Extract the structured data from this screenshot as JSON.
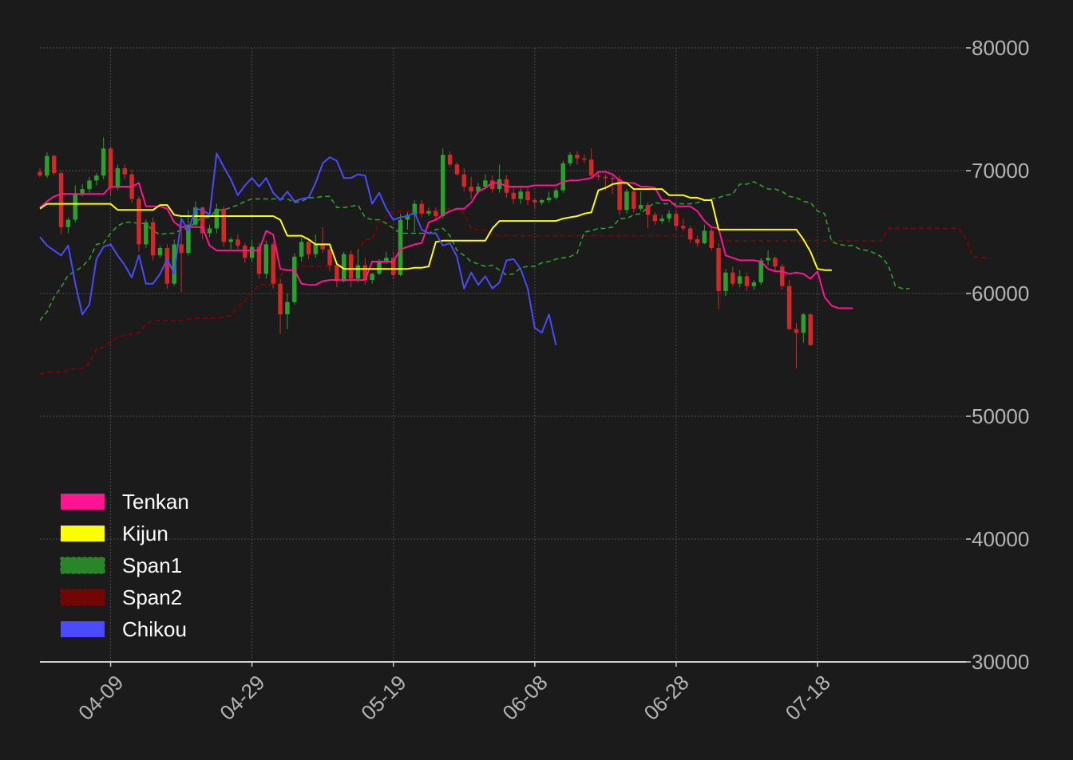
{
  "chart_data": {
    "type": "candlestick",
    "title": "",
    "xlabel": "",
    "ylabel": "",
    "ylim": [
      30000,
      80000
    ],
    "yticks": [
      30000,
      40000,
      50000,
      60000,
      70000,
      80000
    ],
    "ytick_labels": [
      "30000",
      "40000",
      "50000",
      "60000",
      "70000",
      "80000"
    ],
    "xrange": [
      "03-30",
      "08-08"
    ],
    "xticks": [
      "04-09",
      "04-29",
      "05-19",
      "06-08",
      "06-28",
      "07-18"
    ],
    "grid": true,
    "legend_position": "lower-left",
    "colors": {
      "background": "#1b1b1b",
      "up_candle": "#2ca02c",
      "down_candle": "#d62728",
      "axis": "#d0d0d0",
      "tick_text": "#b4b4b4",
      "grid": "#4a4a4a"
    },
    "candles_start": "03-30",
    "candles": [
      [
        69900,
        70200,
        69500,
        69600
      ],
      [
        69600,
        71500,
        69400,
        71200
      ],
      [
        71200,
        71300,
        69600,
        69800
      ],
      [
        69800,
        70000,
        64800,
        65400
      ],
      [
        65400,
        66200,
        64900,
        66000
      ],
      [
        66000,
        68800,
        65800,
        68100
      ],
      [
        68100,
        68900,
        67900,
        68500
      ],
      [
        68500,
        69500,
        68200,
        69200
      ],
      [
        69200,
        69800,
        68800,
        69600
      ],
      [
        69600,
        72700,
        69300,
        71800
      ],
      [
        71800,
        72000,
        68000,
        68600
      ],
      [
        68600,
        70500,
        68400,
        70200
      ],
      [
        70200,
        70500,
        69300,
        69700
      ],
      [
        69700,
        70100,
        67400,
        67700
      ],
      [
        67700,
        67900,
        63400,
        64000
      ],
      [
        64000,
        66000,
        63700,
        65800
      ],
      [
        65800,
        66200,
        62700,
        63100
      ],
      [
        63100,
        63900,
        62900,
        63700
      ],
      [
        63700,
        64000,
        60400,
        60800
      ],
      [
        60800,
        64400,
        60600,
        64000
      ],
      [
        64000,
        66000,
        60100,
        63300
      ],
      [
        63300,
        66800,
        63100,
        65600
      ],
      [
        65600,
        67500,
        65400,
        67000
      ],
      [
        67000,
        67100,
        64400,
        64900
      ],
      [
        64900,
        65600,
        64600,
        65300
      ],
      [
        65300,
        67300,
        64900,
        66900
      ],
      [
        66900,
        67100,
        63800,
        64200
      ],
      [
        64200,
        64600,
        63600,
        64400
      ],
      [
        64400,
        64800,
        63600,
        63900
      ],
      [
        63900,
        64100,
        62500,
        62900
      ],
      [
        62900,
        64300,
        62600,
        63800
      ],
      [
        63800,
        64100,
        61200,
        61600
      ],
      [
        61600,
        64300,
        61200,
        64000
      ],
      [
        64000,
        64200,
        60400,
        60800
      ],
      [
        60800,
        61200,
        56700,
        58300
      ],
      [
        58300,
        60000,
        57100,
        59300
      ],
      [
        59300,
        63300,
        59100,
        63000
      ],
      [
        63000,
        64500,
        62600,
        64200
      ],
      [
        64200,
        64500,
        62800,
        63200
      ],
      [
        63200,
        64800,
        62900,
        64000
      ],
      [
        64000,
        65400,
        63300,
        63600
      ],
      [
        63600,
        64000,
        61800,
        62300
      ],
      [
        62300,
        62600,
        60500,
        61000
      ],
      [
        61000,
        63400,
        60900,
        63200
      ],
      [
        63200,
        63500,
        60500,
        61200
      ],
      [
        61200,
        63600,
        60900,
        62300
      ],
      [
        62300,
        62900,
        60700,
        61100
      ],
      [
        61100,
        61700,
        60800,
        61600
      ],
      [
        61600,
        62800,
        61500,
        62600
      ],
      [
        62600,
        63400,
        62400,
        62900
      ],
      [
        62900,
        63400,
        61200,
        61500
      ],
      [
        61500,
        66500,
        61400,
        66000
      ],
      [
        66000,
        66600,
        65200,
        66400
      ],
      [
        66400,
        67600,
        65000,
        67300
      ],
      [
        67300,
        67600,
        66200,
        66500
      ],
      [
        66500,
        67000,
        66300,
        66700
      ],
      [
        66700,
        67000,
        65900,
        66300
      ],
      [
        66300,
        71800,
        66100,
        71300
      ],
      [
        71300,
        71600,
        70300,
        70500
      ],
      [
        70500,
        70700,
        69600,
        69700
      ],
      [
        69700,
        70200,
        68300,
        68700
      ],
      [
        68700,
        69500,
        67700,
        68300
      ],
      [
        68300,
        69000,
        68100,
        68700
      ],
      [
        68700,
        69700,
        68500,
        69200
      ],
      [
        69200,
        69600,
        68200,
        68500
      ],
      [
        68500,
        70500,
        68200,
        69300
      ],
      [
        69300,
        69600,
        67800,
        68200
      ],
      [
        68200,
        68600,
        67300,
        67700
      ],
      [
        67700,
        68600,
        67300,
        68300
      ],
      [
        68300,
        68600,
        67200,
        67600
      ],
      [
        67600,
        67800,
        66900,
        67400
      ],
      [
        67400,
        67700,
        67200,
        67600
      ],
      [
        67600,
        68300,
        67400,
        67800
      ],
      [
        67800,
        68600,
        67600,
        68400
      ],
      [
        68400,
        70800,
        68200,
        70600
      ],
      [
        70600,
        71500,
        70400,
        71300
      ],
      [
        71300,
        71600,
        70500,
        71000
      ],
      [
        71000,
        71300,
        70600,
        70900
      ],
      [
        70900,
        71800,
        69500,
        69600
      ],
      [
        69600,
        69900,
        69200,
        69500
      ],
      [
        69500,
        69700,
        68400,
        69400
      ],
      [
        69400,
        69700,
        68100,
        69300
      ],
      [
        69300,
        69600,
        66400,
        66800
      ],
      [
        66800,
        68500,
        66500,
        68300
      ],
      [
        68300,
        68600,
        66600,
        66900
      ],
      [
        66900,
        68300,
        66700,
        67200
      ],
      [
        67200,
        67400,
        65300,
        66400
      ],
      [
        66400,
        66600,
        65600,
        65900
      ],
      [
        65900,
        66400,
        65700,
        66100
      ],
      [
        66100,
        66800,
        65800,
        66500
      ],
      [
        66500,
        66800,
        65200,
        65500
      ],
      [
        65500,
        66100,
        65100,
        65300
      ],
      [
        65300,
        65500,
        64100,
        64400
      ],
      [
        64400,
        64700,
        63800,
        64100
      ],
      [
        64100,
        65600,
        64000,
        65100
      ],
      [
        65100,
        65400,
        63500,
        63700
      ],
      [
        63700,
        64100,
        58700,
        60200
      ],
      [
        60200,
        62000,
        59800,
        61700
      ],
      [
        61700,
        62200,
        60600,
        60800
      ],
      [
        60800,
        61900,
        60500,
        61400
      ],
      [
        61400,
        61700,
        60200,
        60600
      ],
      [
        60600,
        61100,
        60300,
        60900
      ],
      [
        60900,
        62900,
        60700,
        62700
      ],
      [
        62700,
        63500,
        62300,
        62900
      ],
      [
        62900,
        63000,
        61800,
        62200
      ],
      [
        62200,
        62400,
        60300,
        60600
      ],
      [
        60600,
        61100,
        57000,
        57100
      ],
      [
        57100,
        57600,
        53900,
        56800
      ],
      [
        56800,
        58400,
        56000,
        58300
      ],
      [
        58300,
        58400,
        55700,
        55800
      ]
    ],
    "series": [
      {
        "name": "Tenkan",
        "color": "#ff1493",
        "dash": "solid",
        "x_start": "03-30",
        "values": [
          67000,
          67500,
          67900,
          68100,
          68100,
          68100,
          68100,
          68100,
          68100,
          68100,
          68700,
          68700,
          68700,
          68700,
          69000,
          67100,
          67100,
          67100,
          66900,
          65800,
          65400,
          65400,
          65400,
          65400,
          63900,
          63500,
          63500,
          63500,
          63500,
          63500,
          63500,
          63500,
          65100,
          64800,
          62000,
          61900,
          61900,
          60800,
          60700,
          60700,
          61000,
          61100,
          61100,
          61100,
          61100,
          61100,
          61100,
          62600,
          62600,
          62600,
          62600,
          63600,
          63800,
          64000,
          64100,
          65800,
          66000,
          66400,
          66700,
          66900,
          66900,
          67400,
          68300,
          68600,
          69000,
          69000,
          68700,
          68700,
          68700,
          68700,
          68800,
          68800,
          68800,
          68800,
          69100,
          69200,
          69200,
          69300,
          69400,
          69900,
          69900,
          69700,
          69200,
          69000,
          69000,
          68700,
          68700,
          68600,
          67600,
          67600,
          67100,
          67100,
          67100,
          66700,
          65900,
          65400,
          65300,
          63100,
          62900,
          62700,
          62700,
          62700,
          62600,
          62000,
          61800,
          61800,
          61600,
          61700,
          61600,
          61200,
          61800,
          59700,
          59000,
          58800,
          58800,
          58800
        ]
      },
      {
        "name": "Kijun",
        "color": "#ffff00",
        "dash": "solid",
        "x_start": "03-30",
        "values": [
          66900,
          67300,
          67300,
          67300,
          67300,
          67300,
          67300,
          67300,
          67300,
          67300,
          67300,
          66800,
          66800,
          66800,
          66800,
          66800,
          66800,
          67200,
          67200,
          66400,
          66300,
          66300,
          66300,
          66300,
          66300,
          66300,
          66300,
          66300,
          66300,
          66300,
          66300,
          66300,
          66300,
          66300,
          66000,
          64700,
          64700,
          64700,
          64400,
          64000,
          64000,
          64000,
          62400,
          62000,
          62000,
          62000,
          62000,
          62000,
          62000,
          62000,
          62000,
          62000,
          62000,
          62100,
          62100,
          62200,
          64200,
          64300,
          64300,
          64300,
          64300,
          64300,
          64300,
          64300,
          65300,
          65900,
          65900,
          65900,
          65900,
          65900,
          65900,
          65900,
          65900,
          65900,
          66100,
          66200,
          66300,
          66500,
          66600,
          68400,
          68600,
          68900,
          69000,
          69000,
          68500,
          68500,
          68500,
          68500,
          68500,
          68000,
          68000,
          68000,
          67800,
          67800,
          67600,
          67600,
          65200,
          65200,
          65200,
          65200,
          65200,
          65200,
          65200,
          65200,
          65200,
          65200,
          65200,
          65200,
          64400,
          63400,
          62000,
          61900,
          61900
        ]
      },
      {
        "name": "Span1",
        "color": "#2ca02c",
        "dash": "dashed",
        "x_start": "03-30",
        "values": [
          57800,
          58500,
          59700,
          60500,
          61500,
          61800,
          62200,
          62800,
          64000,
          64100,
          64900,
          65500,
          65800,
          65800,
          65700,
          65700,
          65100,
          64800,
          64900,
          64900,
          65200,
          65300,
          65800,
          66200,
          66200,
          66800,
          66800,
          67000,
          67200,
          67500,
          67700,
          67700,
          67700,
          67700,
          67700,
          67700,
          67400,
          67500,
          67800,
          67800,
          67900,
          67900,
          67000,
          67000,
          67100,
          67200,
          66200,
          66000,
          66000,
          65700,
          65300,
          64900,
          64900,
          64900,
          64900,
          64900,
          65200,
          65300,
          64700,
          63500,
          63100,
          62600,
          62400,
          62200,
          62300,
          61900,
          61500,
          61600,
          62100,
          62200,
          62200,
          62500,
          62600,
          62800,
          62900,
          63000,
          63300,
          65000,
          65100,
          65300,
          65300,
          65400,
          66100,
          66100,
          66400,
          66500,
          67000,
          67400,
          67300,
          67300,
          67300,
          67300,
          67300,
          67400,
          67600,
          67700,
          67800,
          68000,
          68100,
          68900,
          68900,
          69100,
          68800,
          68500,
          68500,
          68300,
          67900,
          67800,
          67500,
          67400,
          66700,
          66500,
          64200,
          64000,
          63900,
          63900,
          63600,
          63500,
          63300,
          63000,
          62300,
          60600,
          60400,
          60400
        ]
      },
      {
        "name": "Span2",
        "color": "#8b0000",
        "dash": "dashed",
        "x_start": "03-30",
        "values": [
          53400,
          53600,
          53600,
          53600,
          53700,
          53900,
          53900,
          54300,
          55500,
          55600,
          56100,
          56400,
          56600,
          56700,
          56800,
          57500,
          57800,
          57800,
          57800,
          57800,
          57800,
          57900,
          58000,
          58000,
          58000,
          58000,
          58100,
          58200,
          58900,
          59400,
          60100,
          60700,
          60700,
          60700,
          61500,
          61900,
          61900,
          62200,
          62200,
          62200,
          62200,
          62200,
          62200,
          62300,
          62300,
          63500,
          64400,
          64400,
          65800,
          66300,
          66700,
          66700,
          66700,
          66700,
          66700,
          66700,
          66700,
          66900,
          66900,
          66900,
          66500,
          65300,
          65200,
          65200,
          64700,
          64700,
          64700,
          64700,
          64700,
          64700,
          64700,
          64700,
          64700,
          64700,
          64700,
          64700,
          64700,
          64700,
          64700,
          64700,
          64700,
          64700,
          64700,
          64700,
          64700,
          64700,
          64700,
          64700,
          64700,
          64700,
          64700,
          64700,
          64400,
          64400,
          64300,
          64300,
          64300,
          64300,
          64300,
          64300,
          64300,
          64300,
          64300,
          64300,
          64300,
          64300,
          64300,
          64300,
          64300,
          64300,
          64300,
          64300,
          64300,
          64300,
          64300,
          64300,
          64300,
          64300,
          64300,
          64300,
          65300,
          65300,
          65300,
          65300,
          65300,
          65300,
          65300,
          65300,
          65300,
          65300,
          65300,
          64400,
          63000,
          62900,
          62900
        ]
      },
      {
        "name": "Chikou",
        "color": "#4a4aff",
        "dash": "solid",
        "x_start": "03-30",
        "values": [
          64600,
          63900,
          63500,
          63100,
          63900,
          60800,
          58300,
          59100,
          62800,
          63800,
          64000,
          63100,
          62300,
          61300,
          63100,
          60800,
          60800,
          61600,
          62800,
          61600,
          66100,
          65100,
          66900,
          66800,
          66400,
          71400,
          70300,
          69300,
          68000,
          68800,
          69400,
          68700,
          69400,
          68200,
          67600,
          68300,
          67500,
          67700,
          67800,
          69000,
          70600,
          71100,
          70800,
          69400,
          69400,
          69700,
          69600,
          67300,
          68200,
          66900,
          66000,
          66200,
          66300,
          66600,
          65200,
          64900,
          64900,
          63900,
          64100,
          63000,
          60400,
          61700,
          60700,
          61400,
          60400,
          60900,
          62700,
          62800,
          62000,
          60400,
          57200,
          56800,
          58300,
          55800
        ]
      }
    ],
    "legend": [
      {
        "name": "Tenkan",
        "color": "#ff1493"
      },
      {
        "name": "Kijun",
        "color": "#ffff00"
      },
      {
        "name": "Span1",
        "color": "#2ca02c"
      },
      {
        "name": "Span2",
        "color": "#8b0000"
      },
      {
        "name": "Chikou",
        "color": "#4a4aff"
      }
    ]
  }
}
